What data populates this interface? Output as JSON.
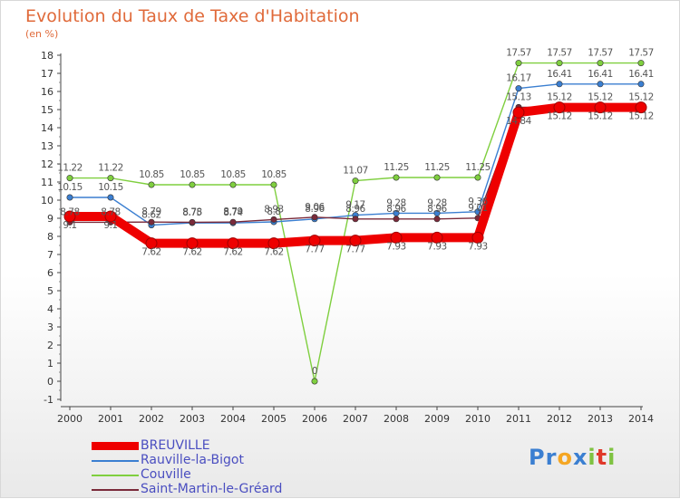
{
  "title": "Evolution du Taux de Taxe d'Habitation",
  "unit_label": "(en %)",
  "logo": {
    "text": "Proxiti",
    "letters": [
      {
        "ch": "P",
        "color": "#3b7fd1"
      },
      {
        "ch": "r",
        "color": "#3b7fd1"
      },
      {
        "ch": "o",
        "color": "#f5a623"
      },
      {
        "ch": "x",
        "color": "#3b7fd1"
      },
      {
        "ch": "i",
        "color": "#7fc241"
      },
      {
        "ch": "t",
        "color": "#e0382a"
      },
      {
        "ch": "i",
        "color": "#7fc241"
      }
    ]
  },
  "chart_data": {
    "type": "line",
    "title": "Evolution du Taux de Taxe d'Habitation",
    "ylabel": "(en %)",
    "xlabel": "",
    "x": [
      "2000",
      "2001",
      "2002",
      "2003",
      "2004",
      "2005",
      "2006",
      "2007",
      "2008",
      "2009",
      "2010",
      "2011",
      "2012",
      "2013",
      "2014"
    ],
    "ylim": [
      -1,
      18
    ],
    "yticks": [
      "-1",
      "0",
      "1",
      "2",
      "3",
      "4",
      "5",
      "6",
      "7",
      "8",
      "9",
      "10",
      "11",
      "12",
      "13",
      "14",
      "15",
      "16",
      "17",
      "18"
    ],
    "grid": false,
    "legend_position": "bottom-left",
    "series": [
      {
        "name": "BREUVILLE",
        "color": "#ee0000",
        "emphasis": "thick",
        "values": [
          9.1,
          9.1,
          7.62,
          7.62,
          7.62,
          7.62,
          7.77,
          7.77,
          7.93,
          7.93,
          7.93,
          14.84,
          15.12,
          15.12,
          15.12
        ],
        "labels": [
          "9.1",
          "9.1",
          "7.62",
          "7.62",
          "7.62",
          "7.62",
          "7.77",
          "7.77",
          "7.93",
          "7.93",
          "7.93",
          "14.84",
          "15.12",
          "15.12",
          "15.12"
        ]
      },
      {
        "name": "Rauville-la-Bigot",
        "color": "#3b7fd1",
        "emphasis": "normal",
        "values": [
          10.15,
          10.15,
          8.62,
          8.75,
          8.74,
          8.8,
          8.96,
          9.17,
          9.28,
          9.28,
          9.36,
          16.17,
          16.41,
          16.41,
          16.41
        ],
        "labels": [
          "10.15",
          "10.15",
          "8.62",
          "8.75",
          "8.74",
          "8.8",
          "8.96",
          "9.17",
          "9.28",
          "9.28",
          "9.36",
          "16.17",
          "16.41",
          "16.41",
          "16.41"
        ]
      },
      {
        "name": "Couville",
        "color": "#7fcf3f",
        "emphasis": "normal",
        "values": [
          11.22,
          11.22,
          10.85,
          10.85,
          10.85,
          10.85,
          0,
          11.07,
          11.25,
          11.25,
          11.25,
          17.57,
          17.57,
          17.57,
          17.57
        ],
        "labels": [
          "11.22",
          "11.22",
          "10.85",
          "10.85",
          "10.85",
          "10.85",
          "0",
          "11.07",
          "11.25",
          "11.25",
          "11.25",
          "17.57",
          "17.57",
          "17.57",
          "17.57"
        ]
      },
      {
        "name": "Saint-Martin-le-Gréard",
        "color": "#7a2a3a",
        "emphasis": "normal",
        "values": [
          8.78,
          8.78,
          8.79,
          8.78,
          8.79,
          8.93,
          9.06,
          8.96,
          8.96,
          8.96,
          9.01,
          15.13,
          15.12,
          15.12,
          15.12
        ],
        "labels": [
          "8.78",
          "8.78",
          "8.79",
          "8.78",
          "8.79",
          "8.93",
          "9.06",
          "8.96",
          "8.96",
          "8.96",
          "9.01",
          "15.13",
          "15.12",
          "15.12",
          "15.12"
        ]
      }
    ]
  }
}
